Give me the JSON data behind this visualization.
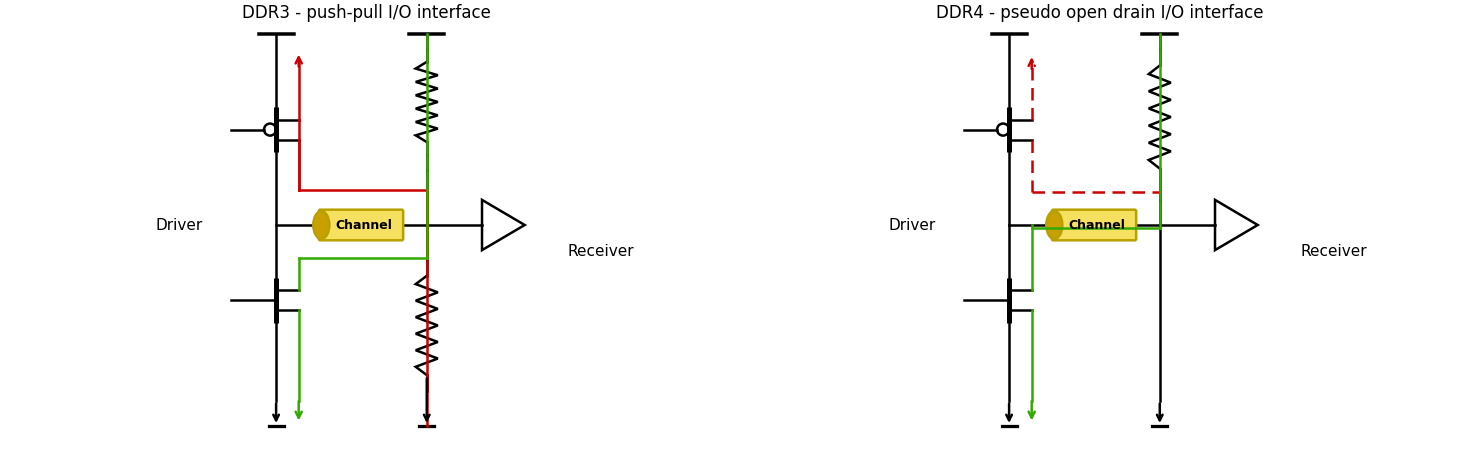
{
  "title_left": "DDR3 - push-pull I/O interface",
  "title_right": "DDR4 - pseudo open drain I/O interface",
  "label_driver": "Driver",
  "label_receiver": "Receiver",
  "label_channel": "Channel",
  "bg_color": "#ffffff",
  "black": "#000000",
  "red": "#cc0000",
  "green": "#33aa00",
  "yellow_fill": "#f5e060",
  "yellow_edge": "#b8a000",
  "title_fontsize": 12,
  "label_fontsize": 11
}
